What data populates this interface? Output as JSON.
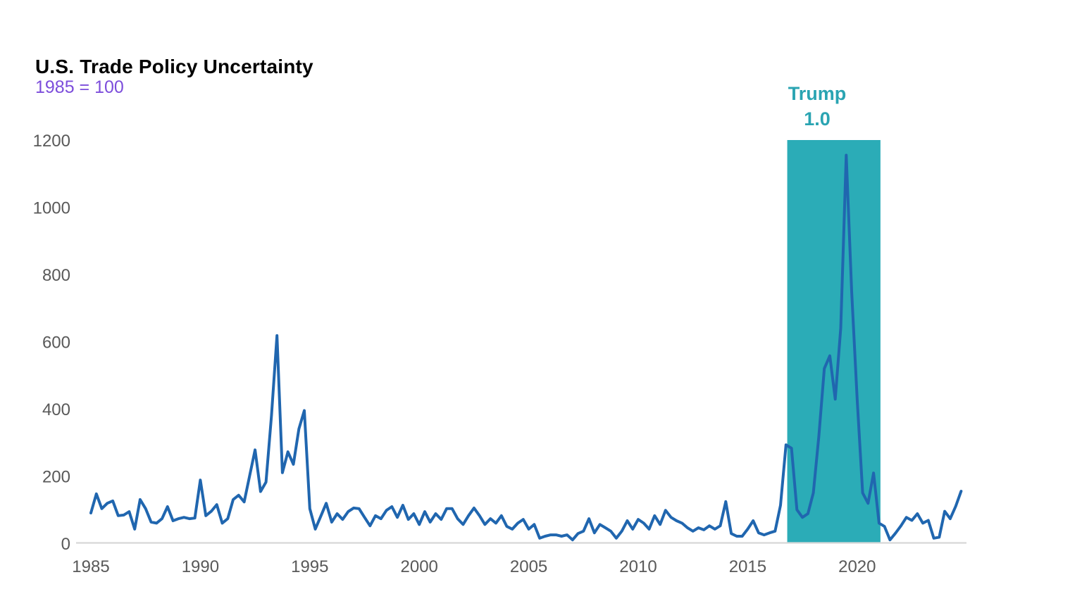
{
  "page": {
    "background": "#ffffff"
  },
  "chart_data": {
    "type": "line",
    "title": "U.S. Trade Policy Uncertainty",
    "subtitle": "1985 = 100",
    "xlabel": "",
    "ylabel": "",
    "grid": false,
    "legend": "none",
    "x_range": [
      1985,
      2025
    ],
    "ylim": [
      0,
      1200
    ],
    "x_ticks": [
      1985,
      1990,
      1995,
      2000,
      2005,
      2010,
      2015,
      2020
    ],
    "y_ticks": [
      0,
      200,
      400,
      600,
      800,
      1000,
      1200
    ],
    "band": {
      "label": "Trump 1.0",
      "start_year": 2017,
      "end_year": 2021
    },
    "colors": {
      "line": "#2066AF",
      "band": "#2BACB7",
      "band_label": "#2AA4B2",
      "title": "#000000",
      "subtitle": "#7C4DDB",
      "tick": "#595959",
      "axis_line": "#D8D8D8"
    },
    "series": [
      {
        "name": "U.S. Trade Policy Uncertainty index (1985 = 100), quarterly",
        "points": [
          [
            1985.0,
            90
          ],
          [
            1985.25,
            147
          ],
          [
            1985.5,
            103
          ],
          [
            1985.75,
            119
          ],
          [
            1986.0,
            126
          ],
          [
            1986.25,
            82
          ],
          [
            1986.5,
            84
          ],
          [
            1986.75,
            94
          ],
          [
            1987.0,
            42
          ],
          [
            1987.25,
            130
          ],
          [
            1987.5,
            103
          ],
          [
            1987.75,
            63
          ],
          [
            1988.0,
            60
          ],
          [
            1988.25,
            73
          ],
          [
            1988.5,
            109
          ],
          [
            1988.75,
            67
          ],
          [
            1989.0,
            73
          ],
          [
            1989.25,
            77
          ],
          [
            1989.5,
            73
          ],
          [
            1989.75,
            75
          ],
          [
            1990.0,
            188
          ],
          [
            1990.25,
            82
          ],
          [
            1990.5,
            95
          ],
          [
            1990.75,
            115
          ],
          [
            1991.0,
            60
          ],
          [
            1991.25,
            73
          ],
          [
            1991.5,
            130
          ],
          [
            1991.75,
            143
          ],
          [
            1992.0,
            123
          ],
          [
            1992.25,
            200
          ],
          [
            1992.5,
            278
          ],
          [
            1992.75,
            154
          ],
          [
            1993.0,
            182
          ],
          [
            1993.25,
            380
          ],
          [
            1993.5,
            618
          ],
          [
            1993.75,
            210
          ],
          [
            1994.0,
            272
          ],
          [
            1994.25,
            235
          ],
          [
            1994.5,
            340
          ],
          [
            1994.75,
            395
          ],
          [
            1995.0,
            103
          ],
          [
            1995.25,
            42
          ],
          [
            1995.5,
            80
          ],
          [
            1995.75,
            119
          ],
          [
            1996.0,
            63
          ],
          [
            1996.25,
            88
          ],
          [
            1996.5,
            71
          ],
          [
            1996.75,
            94
          ],
          [
            1997.0,
            105
          ],
          [
            1997.25,
            103
          ],
          [
            1997.5,
            77
          ],
          [
            1997.75,
            52
          ],
          [
            1998.0,
            82
          ],
          [
            1998.25,
            73
          ],
          [
            1998.5,
            98
          ],
          [
            1998.75,
            109
          ],
          [
            1999.0,
            77
          ],
          [
            1999.25,
            113
          ],
          [
            1999.5,
            71
          ],
          [
            1999.75,
            88
          ],
          [
            2000.0,
            56
          ],
          [
            2000.25,
            94
          ],
          [
            2000.5,
            63
          ],
          [
            2000.75,
            88
          ],
          [
            2001.0,
            71
          ],
          [
            2001.25,
            103
          ],
          [
            2001.5,
            103
          ],
          [
            2001.75,
            73
          ],
          [
            2002.0,
            56
          ],
          [
            2002.25,
            82
          ],
          [
            2002.5,
            105
          ],
          [
            2002.75,
            82
          ],
          [
            2003.0,
            56
          ],
          [
            2003.25,
            73
          ],
          [
            2003.5,
            60
          ],
          [
            2003.75,
            82
          ],
          [
            2004.0,
            50
          ],
          [
            2004.25,
            42
          ],
          [
            2004.5,
            60
          ],
          [
            2004.75,
            71
          ],
          [
            2005.0,
            42
          ],
          [
            2005.25,
            56
          ],
          [
            2005.5,
            15
          ],
          [
            2005.75,
            21
          ],
          [
            2006.0,
            25
          ],
          [
            2006.25,
            25
          ],
          [
            2006.5,
            21
          ],
          [
            2006.75,
            25
          ],
          [
            2007.0,
            10
          ],
          [
            2007.25,
            29
          ],
          [
            2007.5,
            36
          ],
          [
            2007.75,
            73
          ],
          [
            2008.0,
            31
          ],
          [
            2008.25,
            56
          ],
          [
            2008.5,
            46
          ],
          [
            2008.75,
            36
          ],
          [
            2009.0,
            15
          ],
          [
            2009.25,
            36
          ],
          [
            2009.5,
            67
          ],
          [
            2009.75,
            42
          ],
          [
            2010.0,
            71
          ],
          [
            2010.25,
            60
          ],
          [
            2010.5,
            42
          ],
          [
            2010.75,
            82
          ],
          [
            2011.0,
            56
          ],
          [
            2011.25,
            98
          ],
          [
            2011.5,
            77
          ],
          [
            2011.75,
            67
          ],
          [
            2012.0,
            60
          ],
          [
            2012.25,
            46
          ],
          [
            2012.5,
            36
          ],
          [
            2012.75,
            46
          ],
          [
            2013.0,
            40
          ],
          [
            2013.25,
            52
          ],
          [
            2013.5,
            42
          ],
          [
            2013.75,
            52
          ],
          [
            2014.0,
            124
          ],
          [
            2014.25,
            29
          ],
          [
            2014.5,
            21
          ],
          [
            2014.75,
            21
          ],
          [
            2015.0,
            42
          ],
          [
            2015.25,
            67
          ],
          [
            2015.5,
            31
          ],
          [
            2015.75,
            25
          ],
          [
            2016.0,
            31
          ],
          [
            2016.25,
            36
          ],
          [
            2016.5,
            113
          ],
          [
            2016.75,
            293
          ],
          [
            2017.0,
            283
          ],
          [
            2017.25,
            100
          ],
          [
            2017.5,
            77
          ],
          [
            2017.75,
            88
          ],
          [
            2018.0,
            150
          ],
          [
            2018.25,
            318
          ],
          [
            2018.5,
            520
          ],
          [
            2018.75,
            558
          ],
          [
            2019.0,
            429
          ],
          [
            2019.25,
            640
          ],
          [
            2019.5,
            1155
          ],
          [
            2019.75,
            750
          ],
          [
            2020.0,
            430
          ],
          [
            2020.25,
            150
          ],
          [
            2020.5,
            119
          ],
          [
            2020.75,
            209
          ],
          [
            2021.0,
            60
          ],
          [
            2021.25,
            50
          ],
          [
            2021.5,
            10
          ],
          [
            2021.75,
            30
          ],
          [
            2022.0,
            52
          ],
          [
            2022.25,
            77
          ],
          [
            2022.5,
            68
          ],
          [
            2022.75,
            88
          ],
          [
            2023.0,
            60
          ],
          [
            2023.25,
            68
          ],
          [
            2023.5,
            15
          ],
          [
            2023.75,
            18
          ],
          [
            2024.0,
            95
          ],
          [
            2024.25,
            73
          ],
          [
            2024.5,
            110
          ],
          [
            2024.75,
            155
          ]
        ]
      }
    ]
  }
}
